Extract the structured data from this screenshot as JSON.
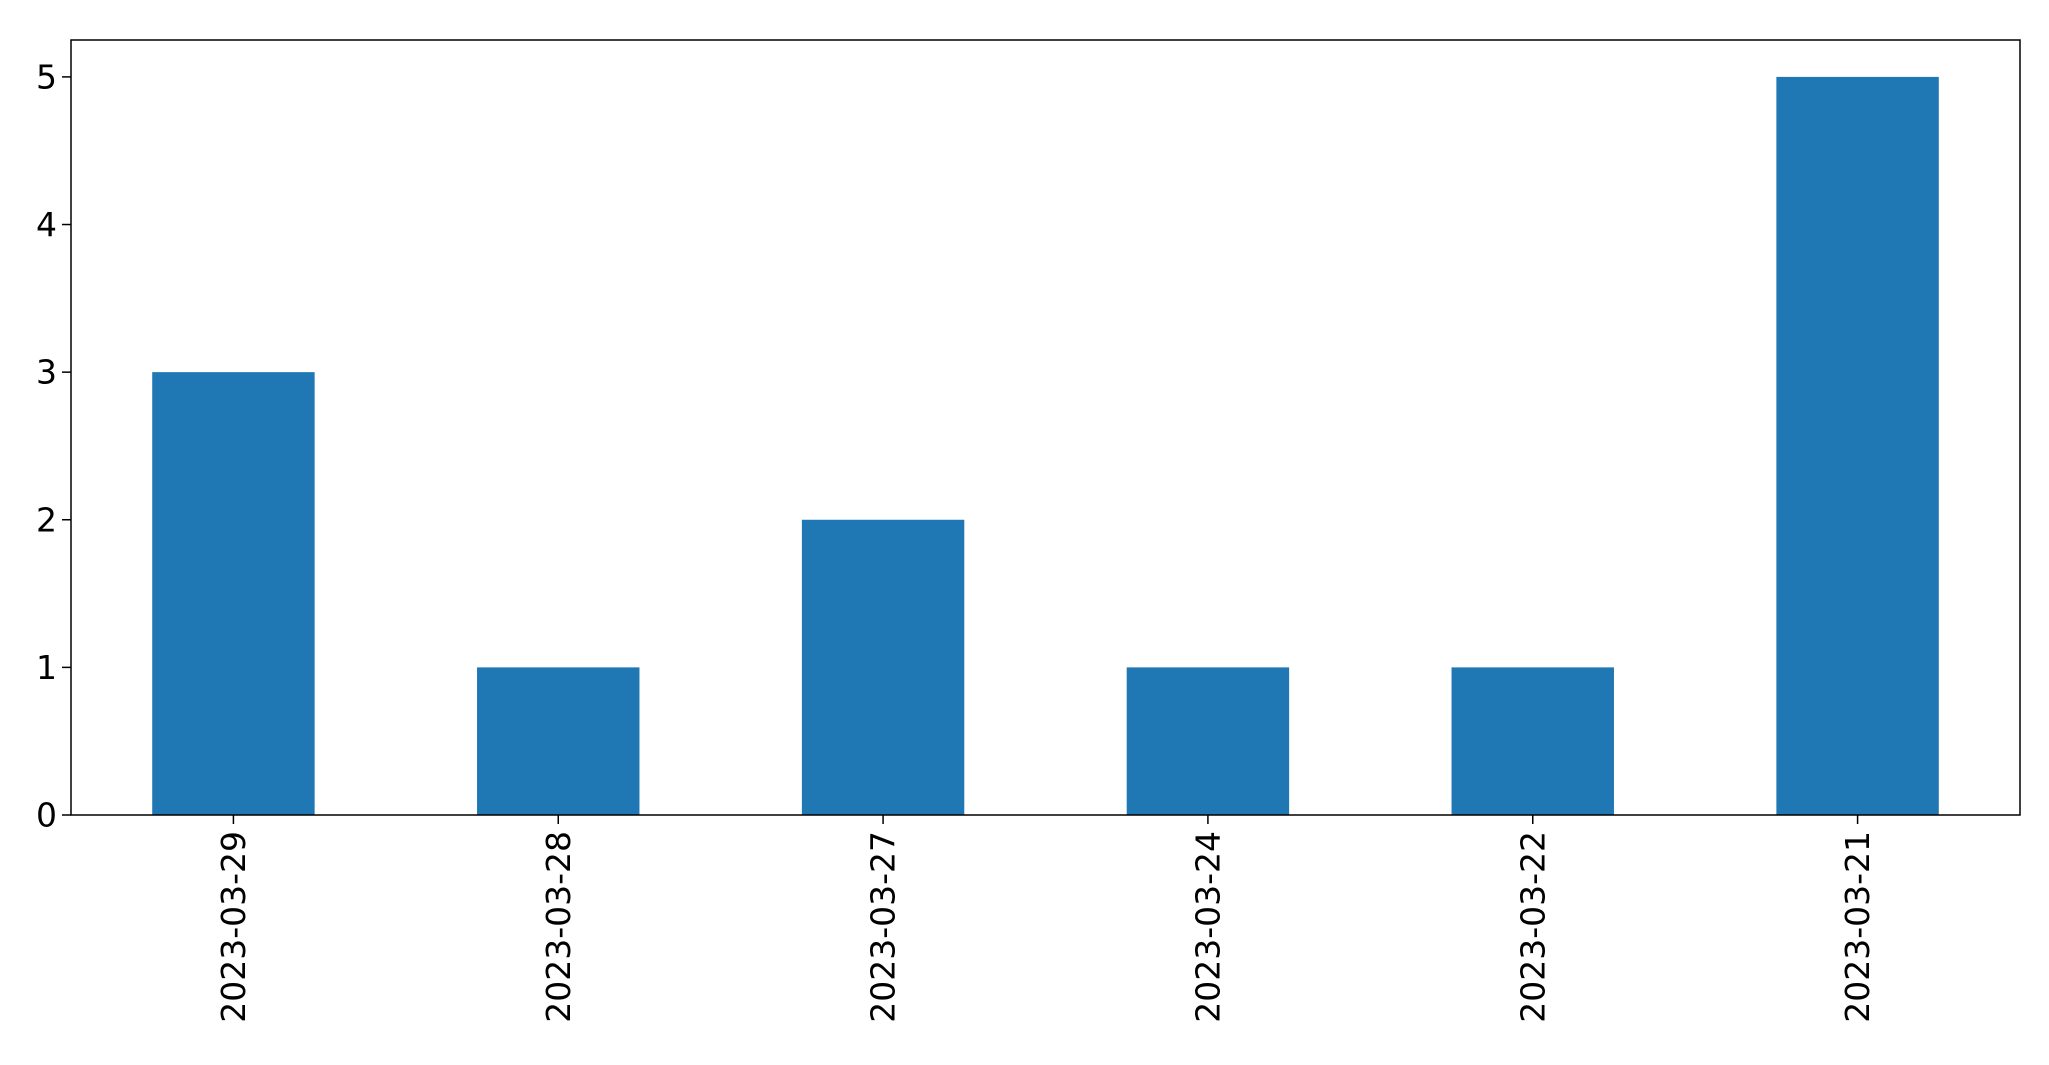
{
  "chart_data": {
    "type": "bar",
    "categories": [
      "2023-03-29",
      "2023-03-28",
      "2023-03-27",
      "2023-03-24",
      "2023-03-22",
      "2023-03-21"
    ],
    "values": [
      3,
      1,
      2,
      1,
      1,
      5
    ],
    "yticks": [
      "0",
      "1",
      "2",
      "3",
      "4",
      "5"
    ],
    "ylim": [
      0,
      5.25
    ],
    "title": "",
    "xlabel": "",
    "ylabel": "",
    "grid": false,
    "legend": "none",
    "bar_color": "#1f77b4",
    "xtick_rotation": "vertical"
  }
}
